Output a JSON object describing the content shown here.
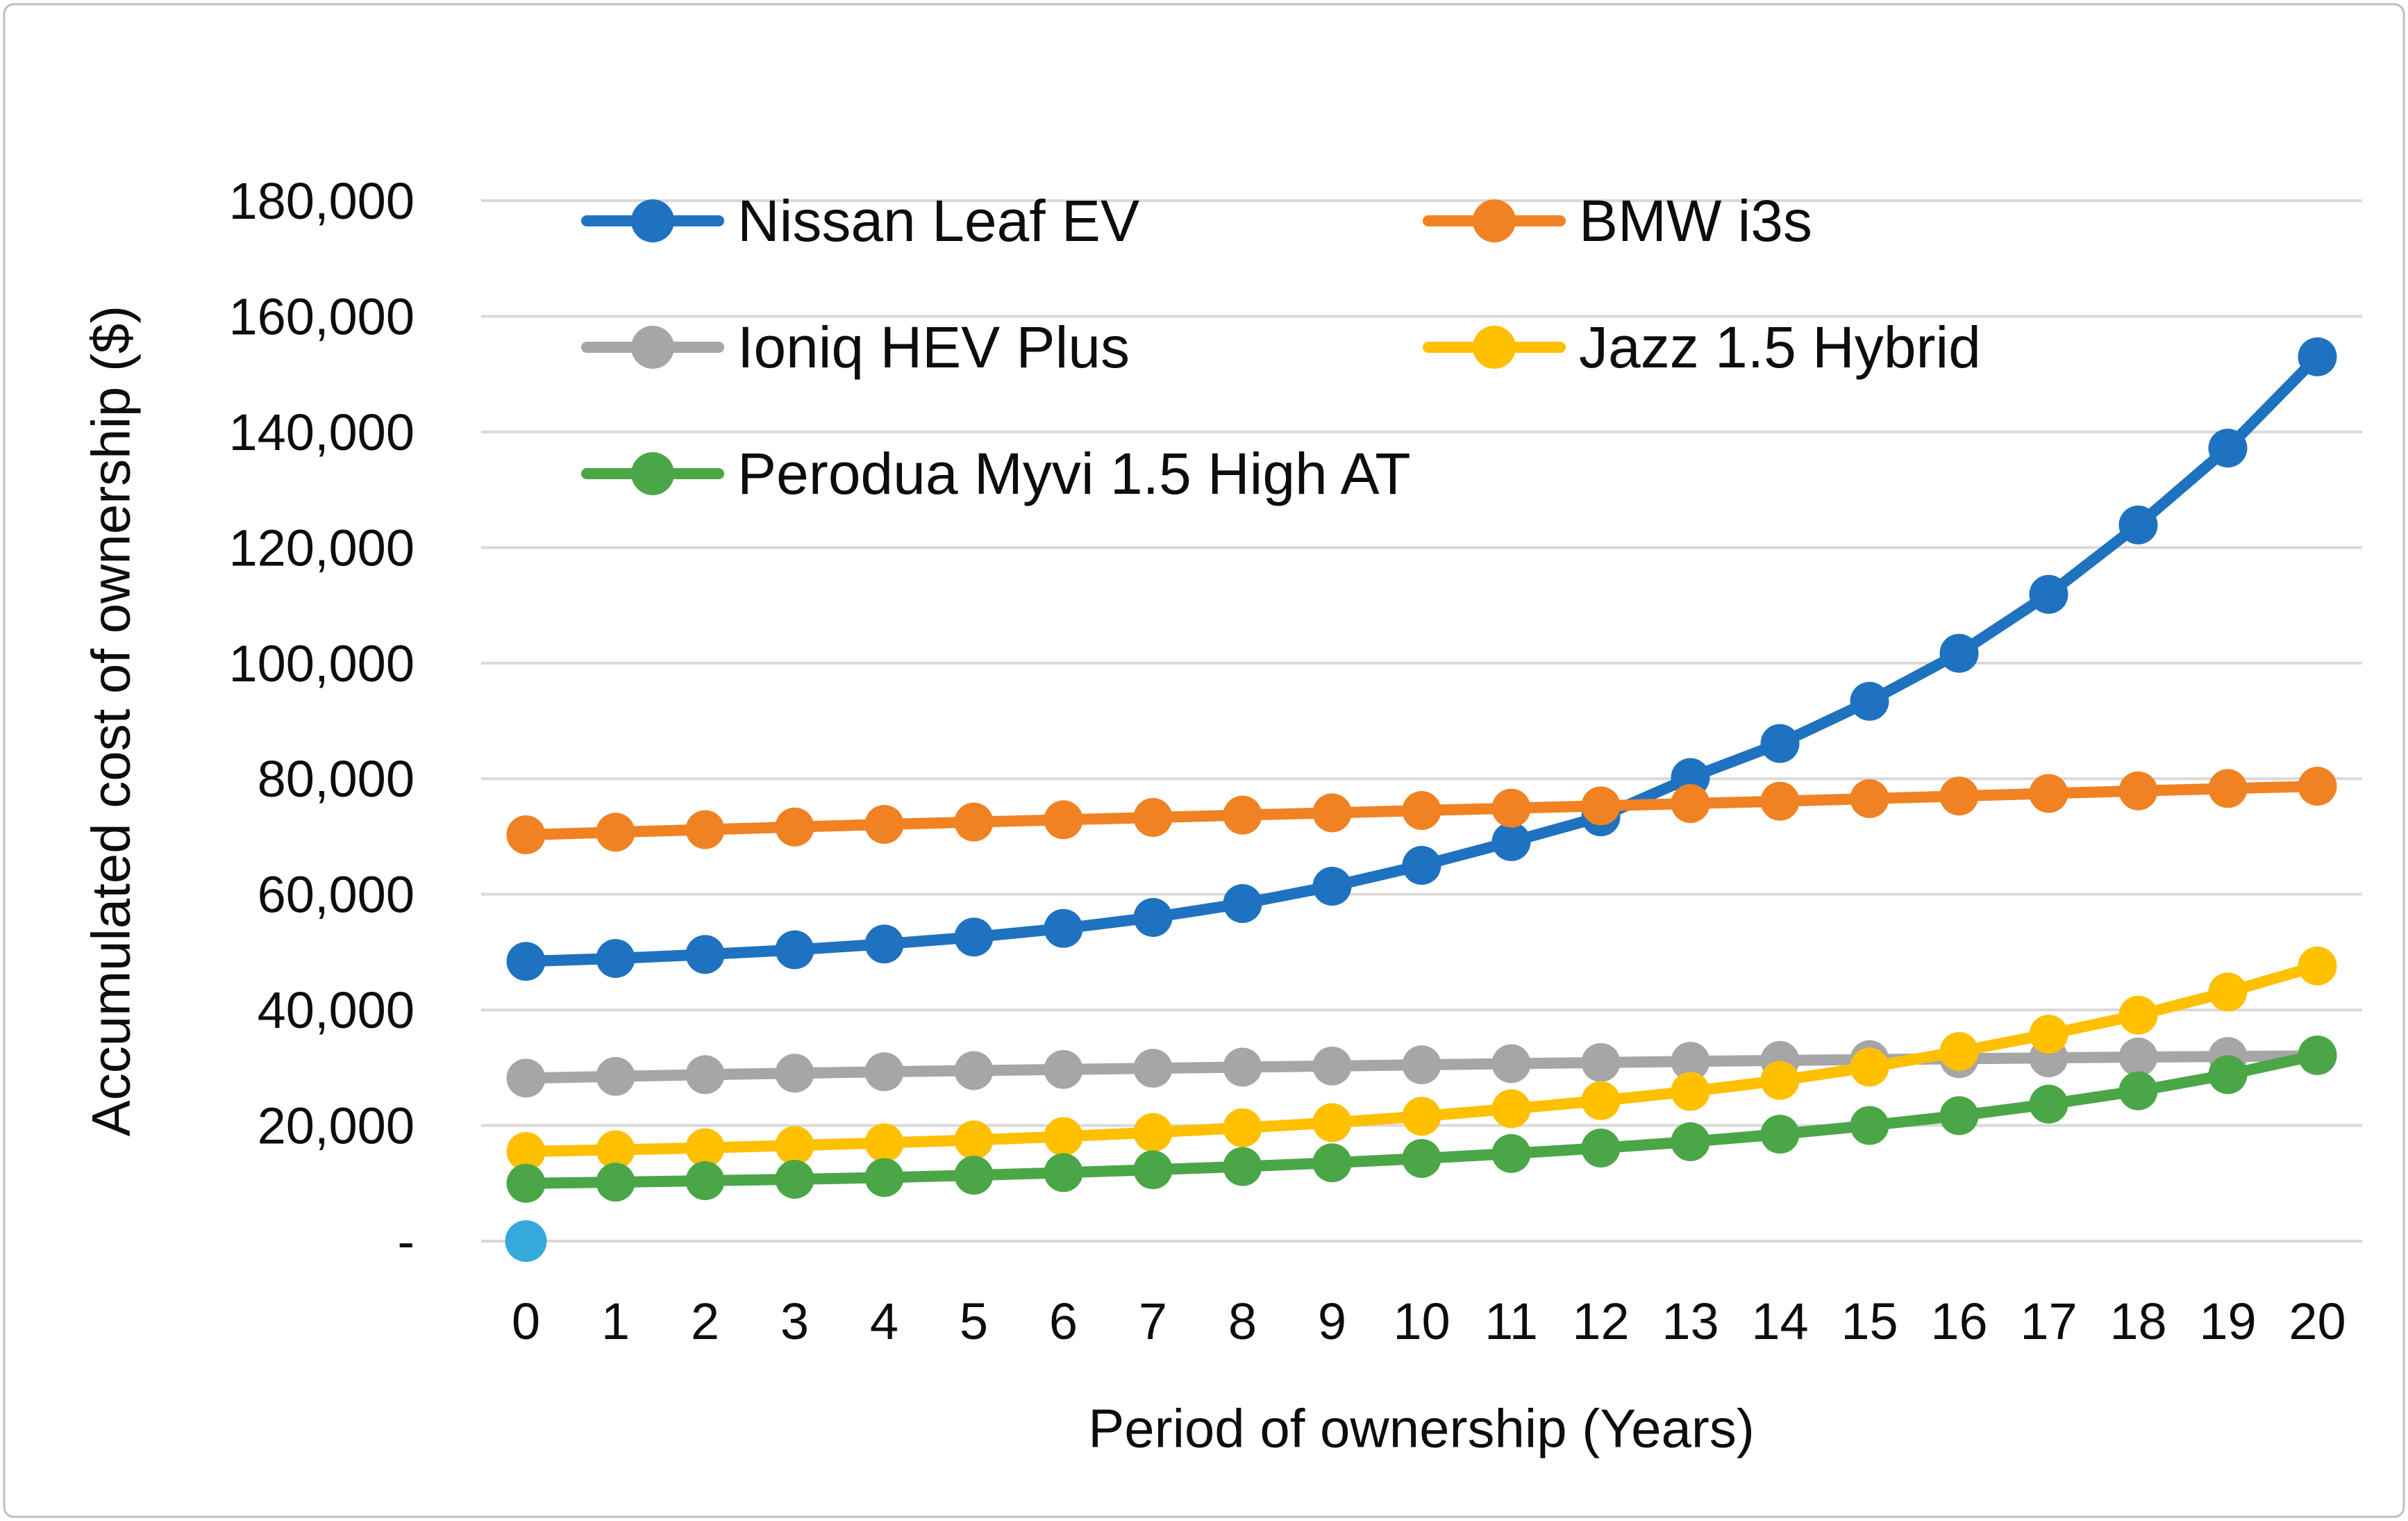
{
  "chart_data": {
    "type": "line",
    "title": "",
    "xlabel": "Period of ownership (Years)",
    "ylabel": "Accumulated cost of ownership ($)",
    "x": [
      0,
      1,
      2,
      3,
      4,
      5,
      6,
      7,
      8,
      9,
      10,
      11,
      12,
      13,
      14,
      15,
      16,
      17,
      18,
      19,
      20
    ],
    "xtick_labels": [
      "0",
      "1",
      "2",
      "3",
      "4",
      "5",
      "6",
      "7",
      "8",
      "9",
      "10",
      "11",
      "12",
      "13",
      "14",
      "15",
      "16",
      "17",
      "18",
      "19",
      "20"
    ],
    "ylim": [
      0,
      180000
    ],
    "ytick_step": 20000,
    "ytick_labels_top_to_bottom": [
      "180,000",
      "160,000",
      "140,000",
      "120,000",
      "100,000",
      "80,000",
      "60,000",
      "40,000",
      "20,000",
      "-"
    ],
    "grid": "horizontal gridlines only, light gray",
    "legend_position": "inside plot, top area, two columns, three rows",
    "series": [
      {
        "name": "Nissan Leaf EV",
        "color": "#1F72BF",
        "values": [
          48400,
          48900,
          49600,
          50400,
          51400,
          52600,
          54100,
          56000,
          58400,
          61400,
          65000,
          69100,
          73400,
          80200,
          86100,
          93400,
          101700,
          111900,
          123900,
          137200,
          153000
        ]
      },
      {
        "name": "BMW i3s",
        "color": "#F08223",
        "values": [
          70300,
          70750,
          71200,
          71650,
          72100,
          72500,
          72900,
          73300,
          73700,
          74100,
          74500,
          74900,
          75300,
          75700,
          76100,
          76550,
          77000,
          77450,
          77900,
          78300,
          78700
        ]
      },
      {
        "name": "Ioniq HEV Plus",
        "color": "#A6A6A6",
        "values": [
          28200,
          28500,
          28800,
          29050,
          29300,
          29500,
          29700,
          29900,
          30100,
          30300,
          30500,
          30700,
          30900,
          31100,
          31250,
          31400,
          31550,
          31700,
          31850,
          31950,
          32050
        ]
      },
      {
        "name": "Jazz 1.5 Hybrid",
        "color": "#FFC000",
        "values": [
          15500,
          15800,
          16150,
          16550,
          17000,
          17500,
          18100,
          18800,
          19600,
          20500,
          21600,
          22900,
          24300,
          25900,
          27800,
          30100,
          32800,
          35800,
          39100,
          43100,
          47600
        ]
      },
      {
        "name": "Perodua Myvi 1.5 High AT",
        "color": "#4BA648",
        "values": [
          10000,
          10200,
          10450,
          10700,
          11000,
          11400,
          11850,
          12350,
          12900,
          13550,
          14300,
          15150,
          16100,
          17200,
          18500,
          20000,
          21700,
          23700,
          26000,
          28800,
          32200
        ]
      }
    ],
    "extra_point": {
      "name": "origin-dot",
      "x": 0,
      "value": 0,
      "color": "#36A9DC"
    }
  },
  "style_colors": {
    "gridline": "#D9D9D9",
    "figure_border": "#BFBFBF",
    "text": "#0d0d0d",
    "background": "#FFFFFF"
  }
}
